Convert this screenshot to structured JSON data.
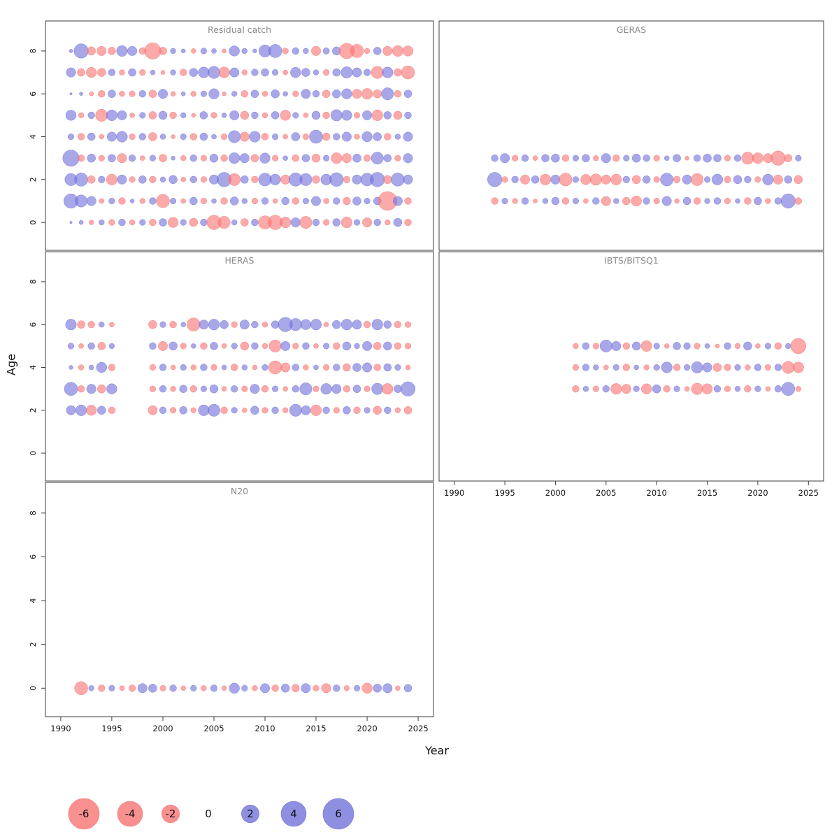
{
  "figure": {
    "xlabel": "Year",
    "ylabel": "Age"
  },
  "chart_data": {
    "type": "scatter",
    "subtype": "bubble-residuals",
    "xlabel": "Year",
    "ylabel": "Age",
    "axes": {
      "x_domain": [
        1988.5,
        2026.5
      ],
      "x_ticks": [
        1990,
        1995,
        2000,
        2005,
        2010,
        2015,
        2020,
        2025
      ],
      "y_domain": [
        -1.3,
        9.4
      ],
      "y_ticks": [
        0,
        2,
        4,
        6,
        8
      ]
    },
    "style": {
      "negative_color": "#f87474",
      "positive_color": "#7373db",
      "opacity": 0.62,
      "radius_scale": 5.5,
      "legend_radius_scale": 9
    },
    "panels": [
      {
        "id": "residual-catch",
        "title": "Residual catch",
        "rows": [
          {
            "age": 8,
            "start": 1991,
            "values": [
              0.2,
              3.5,
              -1.2,
              -1.5,
              -1.0,
              2.0,
              1.5,
              -0.8,
              -4.5,
              -1.0,
              0.5,
              0.3,
              -0.4,
              0.6,
              0.4,
              -0.3,
              1.8,
              0.5,
              0.3,
              2.5,
              3.0,
              -0.6,
              0.8,
              0.5,
              -1.5,
              0.7,
              1.2,
              -4.0,
              -3.0,
              -0.5,
              1.0,
              -1.5,
              -2.0,
              -1.8
            ]
          },
          {
            "age": 7,
            "start": 1991,
            "values": [
              1.5,
              -1.0,
              -1.8,
              -1.2,
              0.8,
              -0.5,
              1.0,
              -0.6,
              0.4,
              -0.3,
              0.5,
              -0.8,
              1.2,
              2.0,
              2.5,
              -2.0,
              1.5,
              -0.5,
              0.8,
              1.0,
              0.6,
              -0.4,
              1.8,
              1.2,
              0.5,
              -0.6,
              1.0,
              2.2,
              1.5,
              0.8,
              -2.5,
              2.0,
              -1.0,
              -3.0
            ]
          },
          {
            "age": 6,
            "start": 1991,
            "values": [
              0.1,
              0.2,
              -0.3,
              -0.8,
              1.0,
              -0.5,
              -0.6,
              0.8,
              -1.0,
              1.5,
              -0.4,
              0.3,
              -0.5,
              0.6,
              1.8,
              -0.3,
              0.5,
              -0.8,
              1.0,
              -0.5,
              1.2,
              0.4,
              -0.6,
              1.5,
              0.8,
              -1.0,
              1.2,
              1.8,
              -1.5,
              -2.0,
              -1.2,
              2.5,
              -0.8,
              1.0
            ]
          },
          {
            "age": 5,
            "start": 1991,
            "values": [
              1.8,
              -0.5,
              0.8,
              -2.5,
              2.0,
              1.5,
              -0.4,
              0.6,
              -1.0,
              1.2,
              -0.8,
              0.5,
              -0.3,
              1.0,
              -0.6,
              0.4,
              1.5,
              -1.2,
              0.8,
              -0.5,
              1.0,
              -1.8,
              0.6,
              -0.4,
              1.2,
              -0.8,
              2.2,
              1.8,
              -0.6,
              1.5,
              -2.0,
              1.0,
              -1.2,
              0.8
            ]
          },
          {
            "age": 4,
            "start": 1991,
            "values": [
              0.6,
              -0.8,
              1.0,
              -0.4,
              1.5,
              2.0,
              -0.6,
              0.8,
              -1.2,
              0.5,
              -0.3,
              0.6,
              -0.8,
              1.0,
              0.4,
              -0.6,
              2.5,
              -1.5,
              2.0,
              -0.8,
              0.6,
              -0.4,
              1.2,
              -0.6,
              3.0,
              -1.0,
              0.8,
              1.5,
              -0.5,
              1.8,
              1.2,
              -0.8,
              0.5,
              1.5
            ]
          },
          {
            "age": 3,
            "start": 1991,
            "values": [
              4.5,
              -0.8,
              1.2,
              -0.6,
              1.0,
              -1.5,
              0.8,
              -0.4,
              0.6,
              -1.0,
              0.3,
              -0.5,
              0.8,
              -0.6,
              1.2,
              -0.8,
              2.0,
              1.5,
              -1.0,
              1.8,
              -0.6,
              0.4,
              -0.8,
              1.0,
              -1.2,
              0.6,
              -2.0,
              -1.5,
              1.2,
              -0.8,
              2.5,
              1.0,
              -0.6,
              1.5
            ]
          },
          {
            "age": 2,
            "start": 1991,
            "values": [
              2.5,
              3.0,
              -1.0,
              0.8,
              -2.0,
              1.5,
              -0.6,
              1.0,
              -0.8,
              0.5,
              1.2,
              -0.4,
              0.8,
              -0.6,
              1.5,
              3.5,
              -2.5,
              1.0,
              -0.8,
              2.8,
              2.0,
              -1.5,
              3.0,
              2.5,
              -1.0,
              2.0,
              3.2,
              -0.8,
              1.5,
              2.8,
              3.5,
              -1.2,
              3.0,
              1.5
            ]
          },
          {
            "age": 1,
            "start": 1991,
            "values": [
              3.5,
              2.5,
              1.5,
              -0.4,
              0.6,
              -0.8,
              0.3,
              -0.5,
              0.8,
              -3.0,
              0.6,
              -0.4,
              1.0,
              -0.6,
              0.4,
              -0.8,
              1.2,
              0.5,
              -0.6,
              0.8,
              -0.4,
              1.0,
              -0.8,
              0.6,
              1.5,
              -0.5,
              0.8,
              -1.0,
              1.2,
              0.6,
              1.0,
              -6.0,
              1.5,
              -0.8
            ]
          },
          {
            "age": 0,
            "start": 1991,
            "values": [
              0.1,
              0.3,
              -0.4,
              0.5,
              -0.6,
              0.8,
              -0.5,
              0.6,
              -0.8,
              1.0,
              -1.8,
              0.6,
              -1.2,
              0.8,
              -3.5,
              -2.5,
              0.5,
              -1.0,
              0.8,
              -3.0,
              -3.5,
              -2.0,
              1.5,
              -2.5,
              0.8,
              -0.6,
              1.0,
              -2.0,
              0.6,
              -1.5,
              0.8,
              -0.5,
              1.2,
              -0.8
            ]
          }
        ]
      },
      {
        "id": "geras",
        "title": "GERAS",
        "rows": [
          {
            "age": 3,
            "start": 1994,
            "values": [
              0.8,
              1.5,
              -0.6,
              0.8,
              -0.4,
              1.0,
              1.2,
              -0.8,
              0.6,
              1.0,
              -0.5,
              1.5,
              -0.8,
              0.6,
              1.2,
              0.8,
              -0.6,
              0.4,
              1.0,
              -0.3,
              0.8,
              1.2,
              1.0,
              -0.6,
              0.8,
              -2.5,
              -2.0,
              -1.5,
              -3.5,
              -1.0,
              0.6
            ]
          },
          {
            "age": 2,
            "start": 1994,
            "values": [
              3.5,
              -0.6,
              0.8,
              -1.5,
              1.0,
              -2.0,
              1.5,
              -2.8,
              0.6,
              -1.8,
              -2.2,
              -1.5,
              -2.0,
              0.8,
              -1.2,
              1.0,
              -0.6,
              2.8,
              -0.8,
              1.5,
              -2.5,
              0.6,
              2.0,
              -0.8,
              1.2,
              0.8,
              -0.6,
              2.0,
              -1.5,
              1.0,
              -1.2
            ]
          },
          {
            "age": 1,
            "start": 1994,
            "values": [
              -0.8,
              0.6,
              -0.5,
              0.8,
              -0.3,
              0.5,
              1.0,
              -0.8,
              0.6,
              -0.4,
              0.8,
              -1.5,
              0.5,
              -1.0,
              -1.8,
              0.8,
              -0.6,
              1.5,
              -0.4,
              1.0,
              -0.8,
              0.5,
              0.8,
              -0.6,
              0.4,
              -0.8,
              1.0,
              -0.5,
              0.8,
              3.5,
              -0.8
            ]
          }
        ]
      },
      {
        "id": "heras",
        "title": "HERAS",
        "rows": [
          {
            "age": 6,
            "start": 1991,
            "values": [
              2.0,
              -1.0,
              -0.8,
              0.5,
              -0.4,
              null,
              null,
              null,
              -1.2,
              0.6,
              -0.8,
              0.4,
              -3.0,
              1.5,
              2.0,
              1.2,
              -0.6,
              1.5,
              0.8,
              -0.5,
              1.0,
              3.5,
              2.5,
              1.8,
              2.0,
              -0.4,
              1.2,
              2.0,
              1.5,
              -0.8,
              2.0,
              1.0,
              -0.8,
              -0.6
            ]
          },
          {
            "age": 5,
            "start": 1991,
            "values": [
              0.6,
              -0.4,
              0.8,
              -1.0,
              0.5,
              null,
              null,
              null,
              0.8,
              -1.5,
              1.2,
              -0.6,
              0.4,
              -0.8,
              1.0,
              -0.4,
              0.6,
              -1.2,
              0.8,
              -0.5,
              -2.5,
              1.5,
              -0.6,
              0.8,
              -0.4,
              0.6,
              -0.8,
              1.2,
              0.5,
              1.5,
              -1.0,
              1.2,
              -0.8,
              -0.6
            ]
          },
          {
            "age": 4,
            "start": 1991,
            "values": [
              0.3,
              -0.5,
              0.4,
              1.8,
              -0.8,
              null,
              null,
              null,
              -0.6,
              0.8,
              -0.4,
              0.6,
              -0.5,
              0.8,
              -0.6,
              0.4,
              -0.8,
              0.5,
              -0.4,
              0.6,
              -3.0,
              -1.5,
              0.8,
              -0.5,
              0.4,
              -0.6,
              0.8,
              -1.0,
              1.2,
              1.5,
              -0.8,
              1.0,
              0.6,
              -0.4
            ]
          },
          {
            "age": 3,
            "start": 1991,
            "values": [
              3.0,
              -0.8,
              1.5,
              -1.2,
              1.8,
              null,
              null,
              null,
              -0.6,
              0.8,
              -0.5,
              1.0,
              -0.8,
              0.6,
              1.2,
              -0.4,
              0.8,
              -0.6,
              1.5,
              -0.8,
              0.6,
              -0.4,
              0.8,
              2.5,
              -0.6,
              2.0,
              1.5,
              -0.8,
              1.0,
              -0.6,
              2.2,
              -2.0,
              1.0,
              3.5
            ]
          },
          {
            "age": 2,
            "start": 1991,
            "values": [
              1.5,
              2.0,
              -1.8,
              1.2,
              -0.8,
              null,
              null,
              null,
              -1.5,
              0.8,
              -0.6,
              1.0,
              -0.5,
              2.0,
              2.5,
              -0.8,
              0.6,
              -0.4,
              1.2,
              -0.6,
              0.8,
              -0.5,
              2.5,
              1.5,
              -2.0,
              0.8,
              -0.6,
              1.0,
              -0.8,
              0.6,
              -1.2,
              0.8,
              -0.5,
              -1.0
            ]
          }
        ]
      },
      {
        "id": "ibts-bitsq1",
        "title": "IBTS/BITSQ1",
        "rows": [
          {
            "age": 5,
            "start": 2002,
            "values": [
              -0.5,
              0.8,
              -0.6,
              2.5,
              1.5,
              -0.8,
              1.2,
              -2.0,
              0.6,
              -0.4,
              1.0,
              0.8,
              -0.6,
              0.4,
              -0.3,
              0.8,
              -0.5,
              1.2,
              -0.4,
              0.6,
              -0.8,
              0.5,
              -4.0
            ]
          },
          {
            "age": 4,
            "start": 2002,
            "values": [
              -0.6,
              0.8,
              0.5,
              -0.4,
              0.6,
              -0.8,
              0.4,
              -0.5,
              0.6,
              2.0,
              -0.8,
              0.6,
              2.2,
              1.5,
              -1.2,
              -0.8,
              0.6,
              -0.5,
              0.8,
              -0.6,
              0.8,
              -2.5,
              -2.0
            ]
          },
          {
            "age": 3,
            "start": 2002,
            "values": [
              -0.8,
              0.5,
              -0.6,
              0.8,
              -2.0,
              -1.5,
              0.6,
              -1.8,
              1.2,
              -0.8,
              0.6,
              -0.4,
              -2.2,
              -1.8,
              0.8,
              -0.6,
              0.5,
              -0.8,
              0.6,
              -0.4,
              0.8,
              3.0,
              -0.5
            ]
          }
        ]
      },
      {
        "id": "n20",
        "title": "N20",
        "rows": [
          {
            "age": 0,
            "start": 1992,
            "values": [
              -3.0,
              0.5,
              -0.8,
              0.6,
              -0.4,
              -0.8,
              1.5,
              1.2,
              -0.6,
              0.8,
              -0.4,
              0.6,
              -0.5,
              0.8,
              -0.4,
              1.8,
              0.6,
              -0.5,
              1.5,
              -0.8,
              1.2,
              -1.0,
              1.5,
              -0.6,
              -1.5,
              0.8,
              -0.5,
              0.6,
              -1.8,
              1.2,
              1.5,
              -0.4,
              1.0
            ]
          }
        ]
      }
    ],
    "legend": {
      "values": [
        -6,
        -4,
        -2,
        0,
        2,
        4,
        6
      ],
      "labels": [
        "-6",
        "-4",
        "-2",
        "0",
        "2",
        "4",
        "6"
      ]
    }
  }
}
